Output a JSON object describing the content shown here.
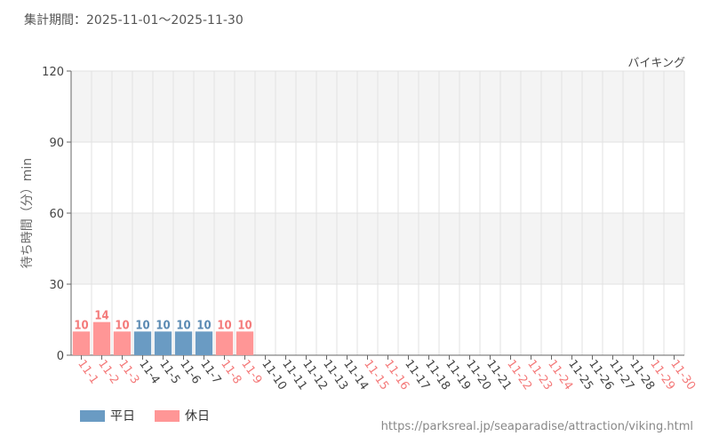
{
  "header": {
    "period": "集計期間：2025-11-01～2025-11-30",
    "attraction": "バイキング"
  },
  "footer": {
    "source": "https://parksreal.jp/seaparadise/attraction/viking.html"
  },
  "legend": {
    "weekday_label": "平日",
    "holiday_label": "休日"
  },
  "colors": {
    "weekday": "#6a9bc3",
    "holiday": "#ff9696",
    "holiday_text": "#f47a7a",
    "weekday_text": "#5a8ab3",
    "axis_text": "#444444"
  },
  "chart_data": {
    "type": "bar",
    "ylabel": "待ち時間（分）min",
    "ylim": [
      0,
      120
    ],
    "yticks": [
      0,
      30,
      60,
      90,
      120
    ],
    "grid": true,
    "legend_position": "bottom-left",
    "categories": [
      "11-1",
      "11-2",
      "11-3",
      "11-4",
      "11-5",
      "11-6",
      "11-7",
      "11-8",
      "11-9",
      "11-10",
      "11-11",
      "11-12",
      "11-13",
      "11-14",
      "11-15",
      "11-16",
      "11-17",
      "11-18",
      "11-19",
      "11-20",
      "11-21",
      "11-22",
      "11-23",
      "11-24",
      "11-25",
      "11-26",
      "11-27",
      "11-28",
      "11-29",
      "11-30"
    ],
    "holiday": [
      true,
      true,
      true,
      false,
      false,
      false,
      false,
      true,
      true,
      false,
      false,
      false,
      false,
      false,
      true,
      true,
      false,
      false,
      false,
      false,
      false,
      true,
      true,
      true,
      false,
      false,
      false,
      false,
      true,
      true
    ],
    "series": [
      {
        "values": [
          10,
          14,
          10,
          10,
          10,
          10,
          10,
          10,
          10,
          null,
          null,
          null,
          null,
          null,
          null,
          null,
          null,
          null,
          null,
          null,
          null,
          null,
          null,
          null,
          null,
          null,
          null,
          null,
          null,
          null
        ]
      }
    ]
  }
}
